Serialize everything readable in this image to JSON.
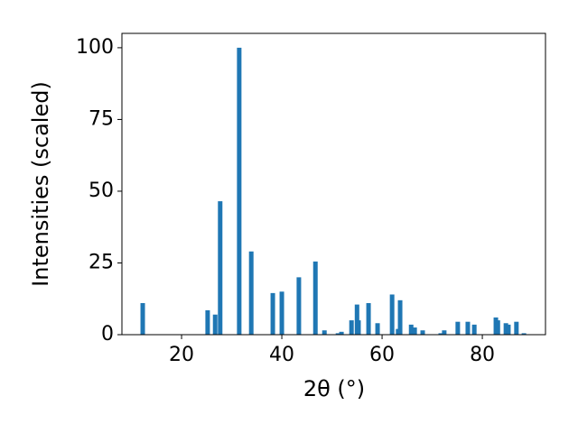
{
  "chart_data": {
    "type": "bar",
    "xlabel": "2θ (°)",
    "ylabel": "Intensities (scaled)",
    "color": "#1f77b4",
    "x": [
      12.25,
      25.2,
      26.7,
      27.7,
      31.5,
      33.9,
      38.2,
      40.0,
      43.4,
      46.7,
      48.5,
      51.2,
      51.9,
      53.9,
      55.0,
      55.3,
      57.3,
      59.1,
      62.0,
      63.2,
      63.6,
      65.8,
      66.5,
      68.1,
      71.7,
      72.4,
      75.1,
      77.1,
      78.4,
      82.7,
      83.1,
      84.7,
      85.2,
      86.8,
      88.3
    ],
    "values": [
      11,
      8.5,
      7,
      46.5,
      100,
      29,
      14.5,
      15,
      20,
      25.5,
      1.5,
      0.5,
      1,
      5,
      10.5,
      5,
      11,
      4,
      14,
      2,
      12,
      3.5,
      2.5,
      1.5,
      0.5,
      1.5,
      4.5,
      4.5,
      3.5,
      6,
      5,
      4,
      3.5,
      4.5,
      0.5
    ],
    "xlim": [
      8.1,
      92.6
    ],
    "ylim": [
      0,
      105
    ],
    "xticks": [
      20,
      40,
      60,
      80
    ],
    "yticks": [
      0,
      25,
      50,
      75,
      100
    ]
  }
}
